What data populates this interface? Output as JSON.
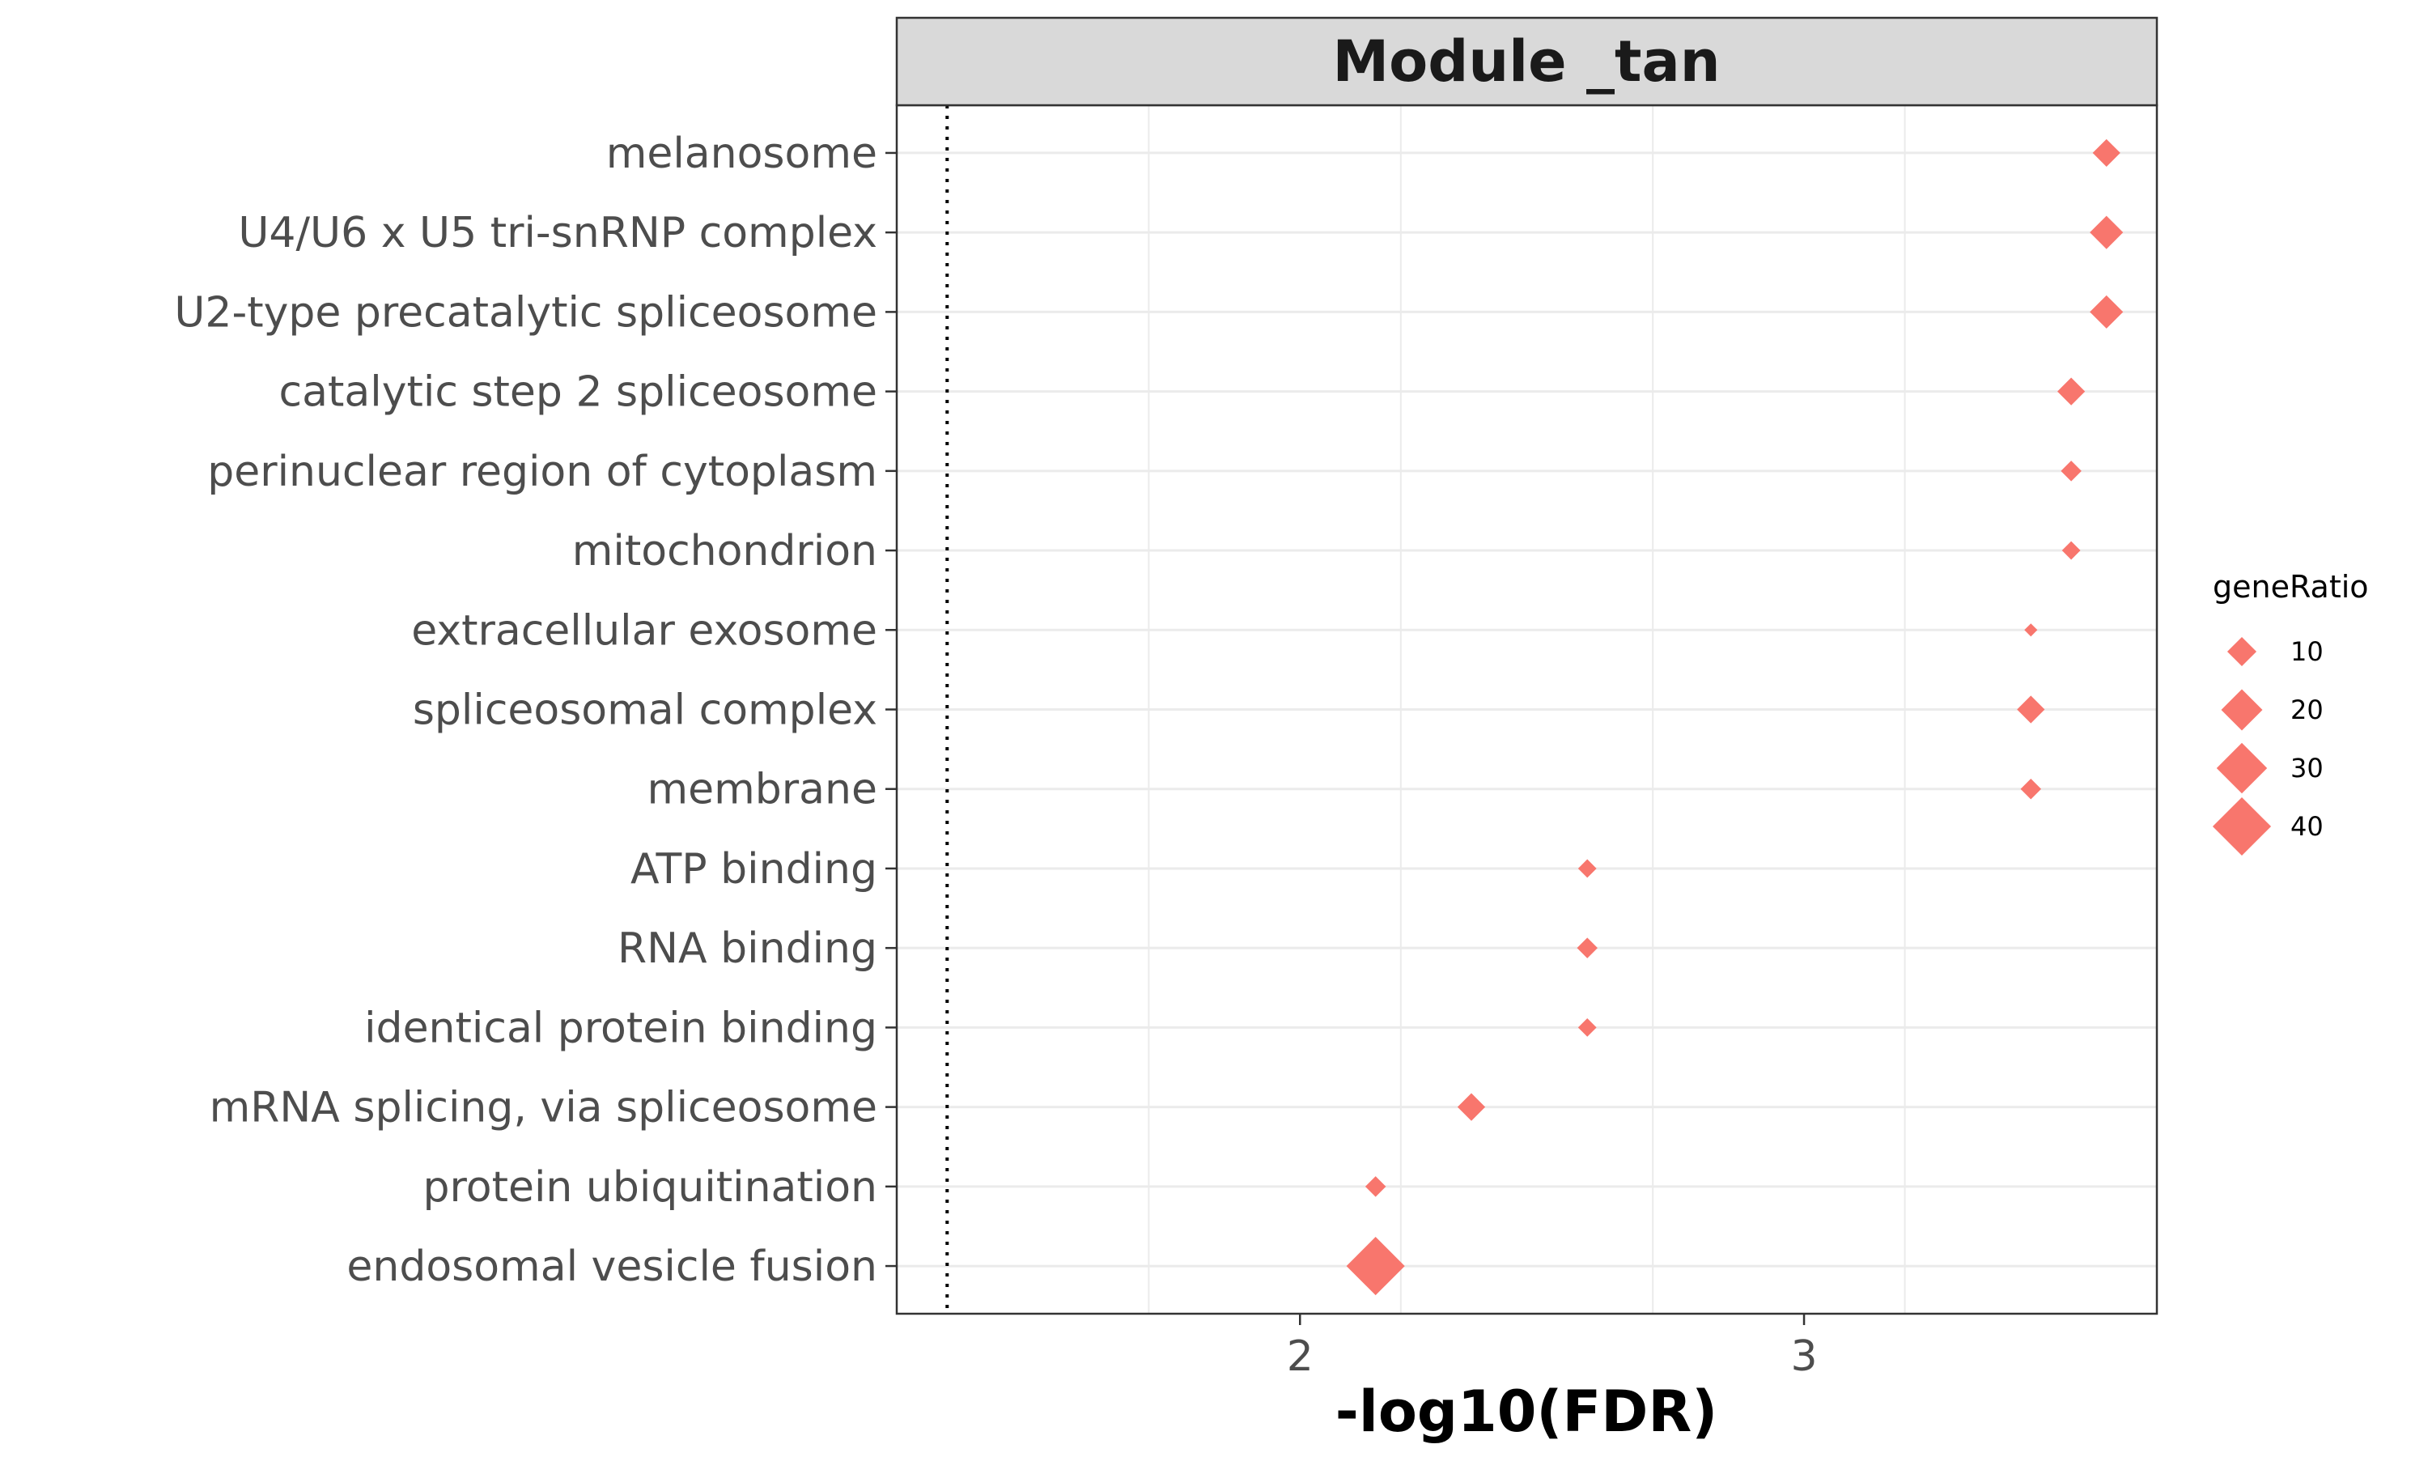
{
  "chart_data": {
    "type": "scatter",
    "title": "Module _tan",
    "xlabel": "-log10(FDR)",
    "ylabel": "",
    "xlim": [
      1.2,
      3.7
    ],
    "x_ticks": [
      2,
      3
    ],
    "x_tick_labels": [
      "2",
      "3"
    ],
    "reference_line": {
      "x": 1.3,
      "style": "dotted"
    },
    "marker": "diamond",
    "color": "#F8766D",
    "grid": true,
    "points": [
      {
        "term": "melanosome",
        "x": 3.6,
        "geneRatio": 9
      },
      {
        "term": "U4/U6 x U5 tri-snRNP complex",
        "x": 3.6,
        "geneRatio": 13
      },
      {
        "term": "U2-type precatalytic spliceosome",
        "x": 3.6,
        "geneRatio": 13
      },
      {
        "term": "catalytic step 2 spliceosome",
        "x": 3.53,
        "geneRatio": 9
      },
      {
        "term": "perinuclear region of cytoplasm",
        "x": 3.53,
        "geneRatio": 5
      },
      {
        "term": "mitochondrion",
        "x": 3.53,
        "geneRatio": 4
      },
      {
        "term": "extracellular exosome",
        "x": 3.45,
        "geneRatio": 2
      },
      {
        "term": "spliceosomal complex",
        "x": 3.45,
        "geneRatio": 9
      },
      {
        "term": "membrane",
        "x": 3.45,
        "geneRatio": 5
      },
      {
        "term": "ATP binding",
        "x": 2.57,
        "geneRatio": 4
      },
      {
        "term": "RNA binding",
        "x": 2.57,
        "geneRatio": 5
      },
      {
        "term": "identical protein binding",
        "x": 2.57,
        "geneRatio": 4
      },
      {
        "term": "mRNA splicing, via spliceosome",
        "x": 2.34,
        "geneRatio": 9
      },
      {
        "term": "protein ubiquitination",
        "x": 2.15,
        "geneRatio": 5
      },
      {
        "term": "endosomal vesicle fusion",
        "x": 2.15,
        "geneRatio": 40
      }
    ],
    "legend": {
      "title": "geneRatio",
      "position": "right",
      "values": [
        10,
        20,
        30,
        40
      ],
      "labels": [
        "10",
        "20",
        "30",
        "40"
      ]
    }
  }
}
